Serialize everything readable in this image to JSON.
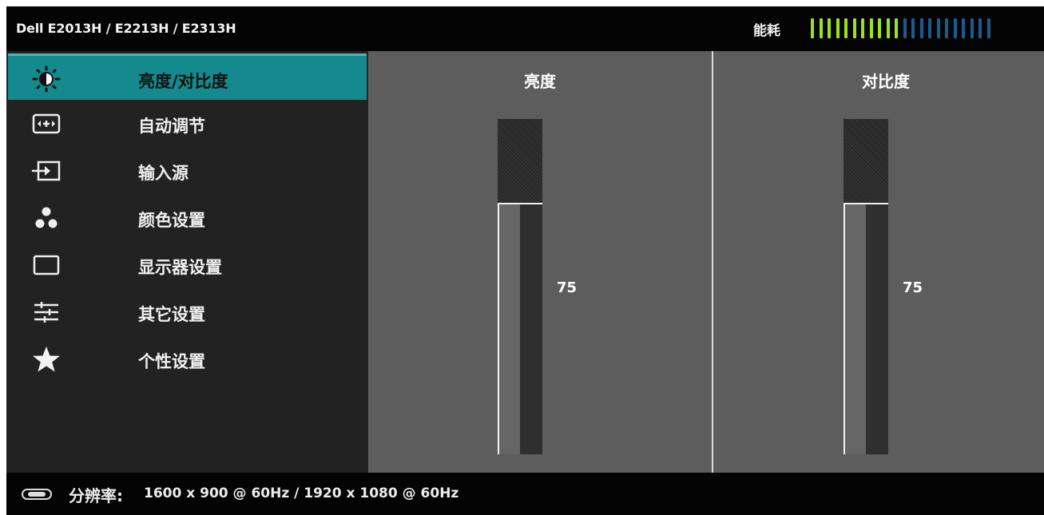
{
  "header": {
    "title": "Dell E2013H / E2213H / E2313H",
    "energy_label": "能耗",
    "energy_meter": {
      "active_segments": 11,
      "total_segments": 22,
      "active_color": "#9be21a",
      "inactive_color": "#1a5c8c"
    }
  },
  "sidebar": {
    "items": [
      {
        "label": "亮度/对比度",
        "icon": "brightness-icon"
      },
      {
        "label": "自动调节",
        "icon": "auto-adjust-icon"
      },
      {
        "label": "输入源",
        "icon": "input-source-icon"
      },
      {
        "label": "颜色设置",
        "icon": "color-settings-icon"
      },
      {
        "label": "显示器设置",
        "icon": "display-settings-icon"
      },
      {
        "label": "其它设置",
        "icon": "other-settings-icon"
      },
      {
        "label": "个性设置",
        "icon": "personalize-star-icon"
      }
    ],
    "selected_index": 0,
    "selected_color": "#148a8e"
  },
  "main": {
    "brightness": {
      "label": "亮度",
      "value": "75",
      "level": 75
    },
    "contrast": {
      "label": "对比度",
      "value": "75",
      "level": 75
    }
  },
  "footer": {
    "resolution_label": "分辨率:",
    "resolution_value": "1600 x 900 @ 60Hz / 1920 x 1080 @ 60Hz",
    "connector_icon": "vga-connector-icon"
  }
}
